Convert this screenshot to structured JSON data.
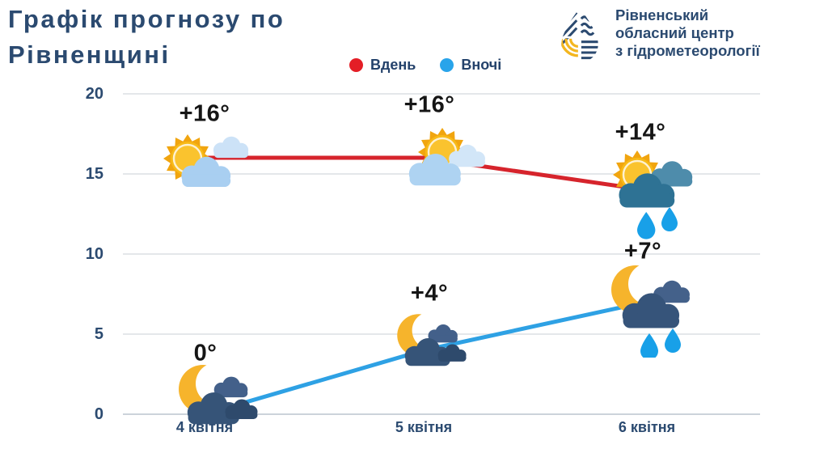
{
  "header": {
    "title_line1": "Графік прогнозу по",
    "title_line2": "Рівненщині"
  },
  "legend": {
    "day_label": "Вдень",
    "night_label": "Вночі"
  },
  "logo": {
    "line1": "Рівненський",
    "line2": "обласний центр",
    "line3": "з гідрометеорології"
  },
  "colors": {
    "navy_text": "#2b4a70",
    "day_red": "#d6242c",
    "night_blue": "#2ea1e4",
    "legend_day_dot": "#e41e26",
    "legend_night_dot": "#29a4ea",
    "gridline": "#e4e7ea"
  },
  "chart_data": {
    "type": "line",
    "title": "Графік прогнозу по Рівненщині",
    "categories": [
      "4 квітня",
      "5 квітня",
      "6 квітня"
    ],
    "series": [
      {
        "name": "Вдень",
        "color": "#d6242c",
        "values": [
          16,
          16,
          14
        ],
        "point_labels": [
          "+16°",
          "+16°",
          "+14°"
        ],
        "icons": [
          "sun-clouds-icon",
          "sun-cloud-icon",
          "sun-rain-cloud-icon"
        ]
      },
      {
        "name": "Вночі",
        "color": "#2ea1e4",
        "values": [
          0,
          4,
          7
        ],
        "point_labels": [
          "0°",
          "+4°",
          "+7°"
        ],
        "icons": [
          "moon-clouds-icon",
          "moon-clouds-icon",
          "moon-rain-cloud-icon"
        ]
      }
    ],
    "xlabel": "",
    "ylabel": "",
    "yticks": [
      0,
      5,
      10,
      15,
      20
    ],
    "ylim": [
      0,
      20
    ],
    "grid": "horizontal",
    "legend_position": "top-center"
  }
}
